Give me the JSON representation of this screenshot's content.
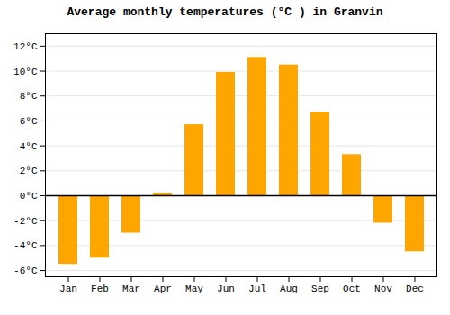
{
  "chart_data": {
    "type": "bar",
    "title": "Average monthly temperatures (°C ) in Granvin",
    "categories": [
      "Jan",
      "Feb",
      "Mar",
      "Apr",
      "May",
      "Jun",
      "Jul",
      "Aug",
      "Sep",
      "Oct",
      "Nov",
      "Dec"
    ],
    "values": [
      -5.5,
      -5.0,
      -3.0,
      0.2,
      5.7,
      9.9,
      11.1,
      10.5,
      6.7,
      3.3,
      -2.2,
      -4.5
    ],
    "color": "#FFA500",
    "ylim": [
      -6.5,
      13.0
    ],
    "yticks": [
      {
        "value": -6,
        "label": "-6°C"
      },
      {
        "value": -4,
        "label": "-4°C"
      },
      {
        "value": -2,
        "label": "-2°C"
      },
      {
        "value": 0,
        "label": "0°C"
      },
      {
        "value": 2,
        "label": "2°C"
      },
      {
        "value": 4,
        "label": "4°C"
      },
      {
        "value": 6,
        "label": "6°C"
      },
      {
        "value": 8,
        "label": "8°C"
      },
      {
        "value": 10,
        "label": "10°C"
      },
      {
        "value": 12,
        "label": "12°C"
      }
    ],
    "grid": true
  }
}
